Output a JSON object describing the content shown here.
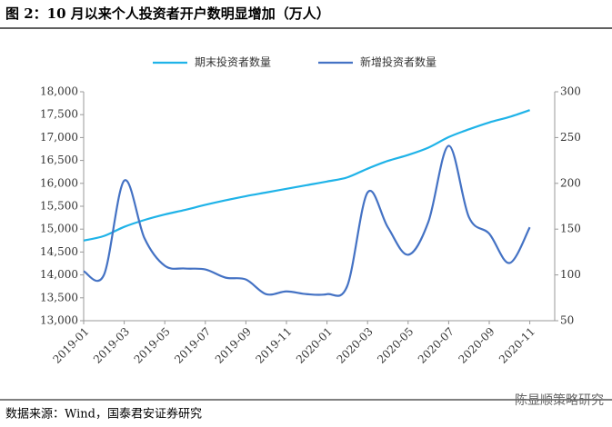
{
  "chart_data": {
    "type": "line",
    "title": "图 2：10 月以来个人投资者开户数明显增加（万人）",
    "source": "数据来源：Wind，国泰君安证券研究",
    "watermark": "陈显顺策略研究",
    "categories": [
      "2019-01",
      null,
      "2019-03",
      null,
      "2019-05",
      null,
      "2019-07",
      null,
      "2019-09",
      null,
      "2019-11",
      null,
      "2020-01",
      null,
      "2020-03",
      null,
      "2020-05",
      null,
      "2020-07",
      null,
      "2020-09",
      null,
      "2020-11"
    ],
    "series": [
      {
        "name": "期末投资者数量",
        "color": "#1fb3e8",
        "axis": "y",
        "values": [
          14750,
          14850,
          15050,
          15200,
          15320,
          15420,
          15530,
          15630,
          15720,
          15800,
          15880,
          15960,
          16040,
          16130,
          16320,
          16490,
          16620,
          16780,
          17010,
          17180,
          17330,
          17450,
          17600
        ]
      },
      {
        "name": "新增投资者数量",
        "color": "#4472c4",
        "axis": "y2",
        "values": [
          104,
          100,
          203,
          140,
          110,
          107,
          106,
          97,
          95,
          79,
          82,
          79,
          79,
          88,
          190,
          152,
          122,
          158,
          241,
          163,
          145,
          113,
          152
        ]
      }
    ],
    "ylim": [
      13000,
      18000
    ],
    "yticks": [
      {
        "value": 13000,
        "label": "13,000"
      },
      {
        "value": 13500,
        "label": "13,500"
      },
      {
        "value": 14000,
        "label": "14,000"
      },
      {
        "value": 14500,
        "label": "14,500"
      },
      {
        "value": 15000,
        "label": "15,000"
      },
      {
        "value": 15500,
        "label": "15,500"
      },
      {
        "value": 16000,
        "label": "16,000"
      },
      {
        "value": 16500,
        "label": "16,500"
      },
      {
        "value": 17000,
        "label": "17,000"
      },
      {
        "value": 17500,
        "label": "17,500"
      },
      {
        "value": 18000,
        "label": "18,000"
      }
    ],
    "y2lim": [
      50,
      300
    ],
    "y2ticks": [
      50,
      100,
      150,
      200,
      250,
      300
    ],
    "legend": "top"
  }
}
